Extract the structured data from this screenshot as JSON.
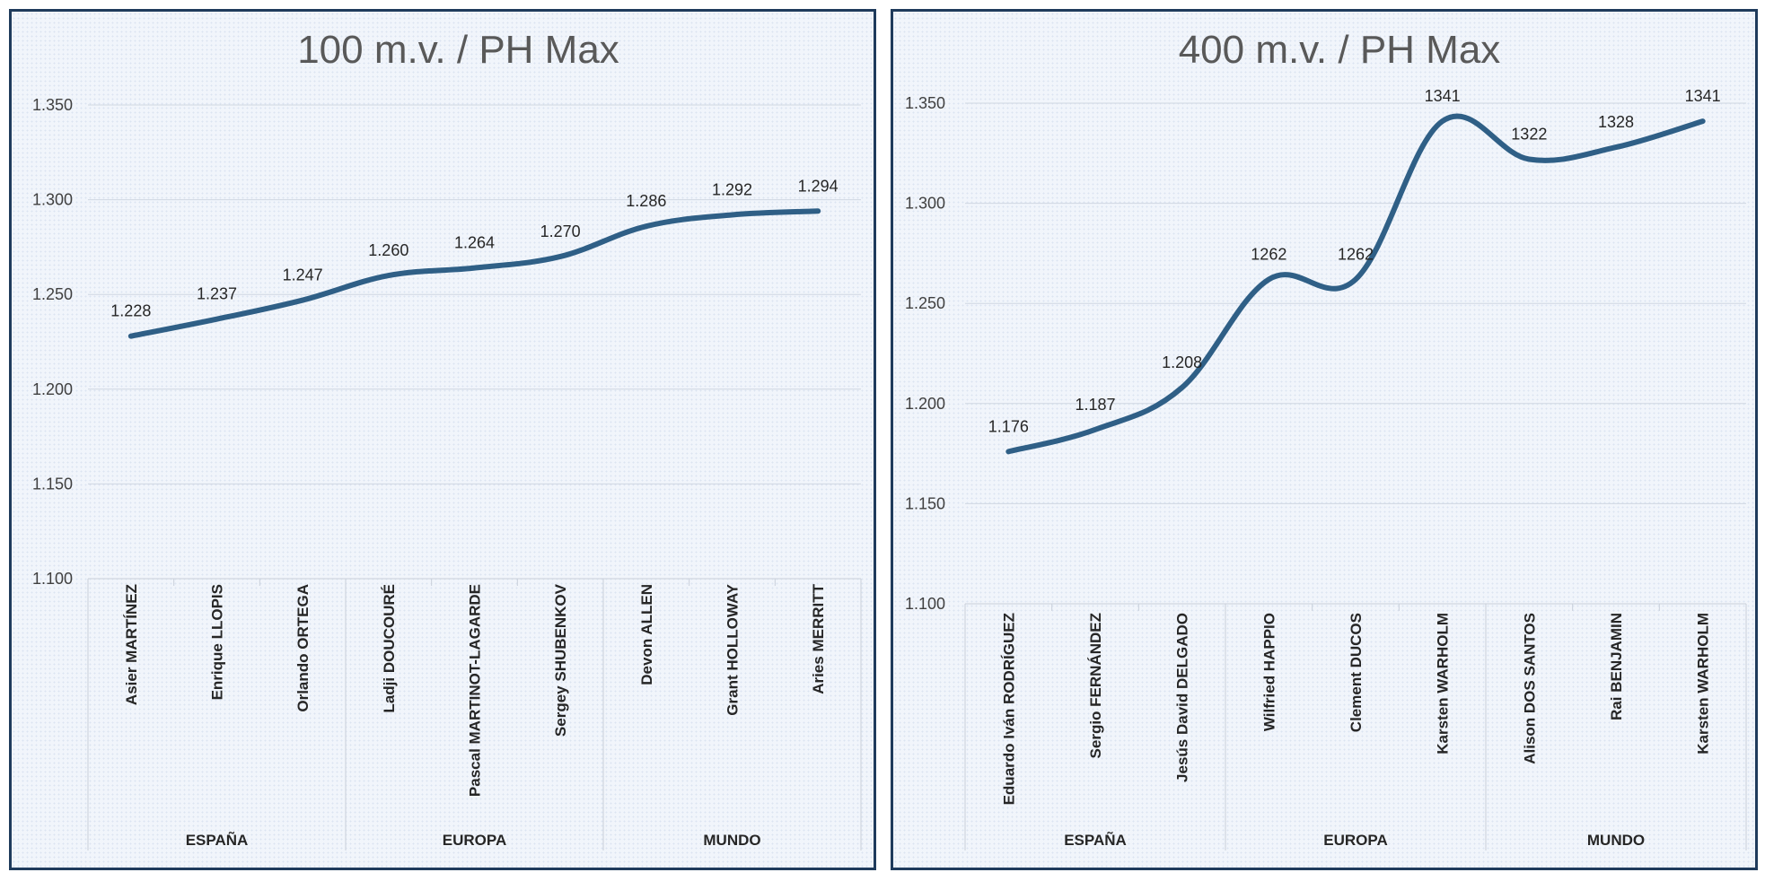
{
  "chart_data": [
    {
      "type": "line",
      "title": "100 m.v. / PH Max",
      "ylim": [
        1100,
        1350
      ],
      "y_ticks": [
        "1.350",
        "1.300",
        "1.250",
        "1.200",
        "1.150",
        "1.100"
      ],
      "y_tick_values": [
        1350,
        1300,
        1250,
        1200,
        1150,
        1100
      ],
      "categories": [
        "Asier MARTÍNEZ",
        "Enrique LLOPIS",
        "Orlando ORTEGA",
        "Ladji DOUCOURÉ",
        "Pascal MARTINOT-LAGARDE",
        "Sergey SHUBENKOV",
        "Devon ALLEN",
        "Grant HOLLOWAY",
        "Aries MERRITT"
      ],
      "groups": [
        "ESPAÑA",
        "EUROPA",
        "MUNDO"
      ],
      "values": [
        1228,
        1237,
        1247,
        1260,
        1264,
        1270,
        1286,
        1292,
        1294
      ],
      "data_labels": [
        "1.228",
        "1.237",
        "1.247",
        "1.260",
        "1.264",
        "1.270",
        "1.286",
        "1.292",
        "1.294"
      ],
      "series_color": "#2f5f86",
      "grid": true
    },
    {
      "type": "line",
      "title": "400 m.v. / PH Max",
      "ylim": [
        1100,
        1350
      ],
      "y_ticks": [
        "1.350",
        "1.300",
        "1.250",
        "1.200",
        "1.150",
        "1.100"
      ],
      "y_tick_values": [
        1350,
        1300,
        1250,
        1200,
        1150,
        1100
      ],
      "categories": [
        "Eduardo Iván RODRÍGUEZ",
        "Sergio FERNÁNDEZ",
        "Jesús David DELGADO",
        "Wilfried HAPPIO",
        "Clement DUCOS",
        "Karsten WARHOLM",
        "Alison DOS SANTOS",
        "Rai BENJAMIN",
        "Karsten WARHOLM"
      ],
      "groups": [
        "ESPAÑA",
        "EUROPA",
        "MUNDO"
      ],
      "values": [
        1176,
        1187,
        1208,
        1262,
        1262,
        1341,
        1322,
        1328,
        1341
      ],
      "data_labels": [
        "1.176",
        "1.187",
        "1.208",
        "1262",
        "1262",
        "1341",
        "1322",
        "1328",
        "1341"
      ],
      "series_color": "#2f5f86",
      "grid": true
    }
  ]
}
